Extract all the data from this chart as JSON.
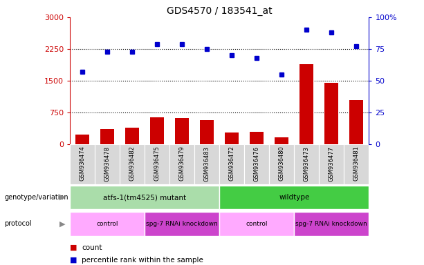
{
  "title": "GDS4570 / 183541_at",
  "samples": [
    "GSM936474",
    "GSM936478",
    "GSM936482",
    "GSM936475",
    "GSM936479",
    "GSM936483",
    "GSM936472",
    "GSM936476",
    "GSM936480",
    "GSM936473",
    "GSM936477",
    "GSM936481"
  ],
  "counts": [
    230,
    370,
    390,
    640,
    630,
    580,
    280,
    300,
    175,
    1900,
    1450,
    1050
  ],
  "percentile_ranks": [
    57,
    73,
    73,
    79,
    79,
    75,
    70,
    68,
    55,
    90,
    88,
    77
  ],
  "ylim_left": [
    0,
    3000
  ],
  "ylim_right": [
    0,
    100
  ],
  "yticks_left": [
    0,
    750,
    1500,
    2250,
    3000
  ],
  "yticks_right": [
    0,
    25,
    50,
    75,
    100
  ],
  "bar_color": "#cc0000",
  "dot_color": "#0000cc",
  "genotype_groups": [
    {
      "label": "atfs-1(tm4525) mutant",
      "start": 0,
      "end": 6,
      "color": "#aaddaa"
    },
    {
      "label": "wildtype",
      "start": 6,
      "end": 12,
      "color": "#44cc44"
    }
  ],
  "protocol_groups": [
    {
      "label": "control",
      "start": 0,
      "end": 3,
      "color": "#ffaaff"
    },
    {
      "label": "spg-7 RNAi knockdown",
      "start": 3,
      "end": 6,
      "color": "#cc44cc"
    },
    {
      "label": "control",
      "start": 6,
      "end": 9,
      "color": "#ffaaff"
    },
    {
      "label": "spg-7 RNAi knockdown",
      "start": 9,
      "end": 12,
      "color": "#cc44cc"
    }
  ],
  "hgrid_vals": [
    750,
    1500,
    2250
  ],
  "sample_bg_color": "#d0d0d0",
  "sample_sep_color": "#ffffff"
}
